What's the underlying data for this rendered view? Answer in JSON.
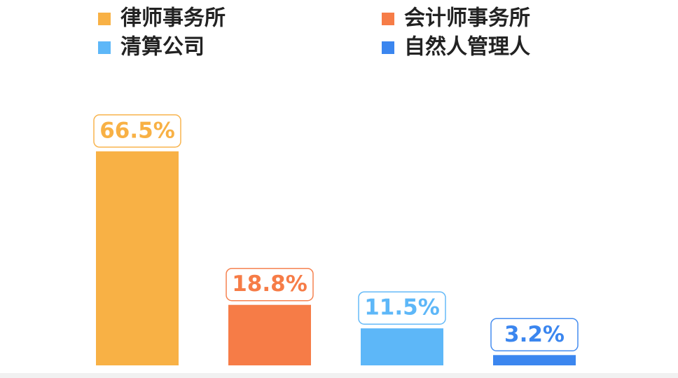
{
  "chart_data": {
    "type": "bar",
    "series": [
      {
        "name": "律师事务所",
        "color": "#f8b145",
        "values": [
          66.5
        ],
        "value_labels": [
          "66.5%"
        ]
      },
      {
        "name": "会计师事务所",
        "color": "#f67c47",
        "values": [
          18.8
        ],
        "value_labels": [
          "18.8%"
        ]
      },
      {
        "name": "清算公司",
        "color": "#5db7f8",
        "values": [
          11.5
        ],
        "value_labels": [
          "11.5%"
        ]
      },
      {
        "name": "自然人管理人",
        "color": "#3b86ef",
        "values": [
          3.2
        ],
        "value_labels": [
          "3.2%"
        ]
      }
    ]
  }
}
